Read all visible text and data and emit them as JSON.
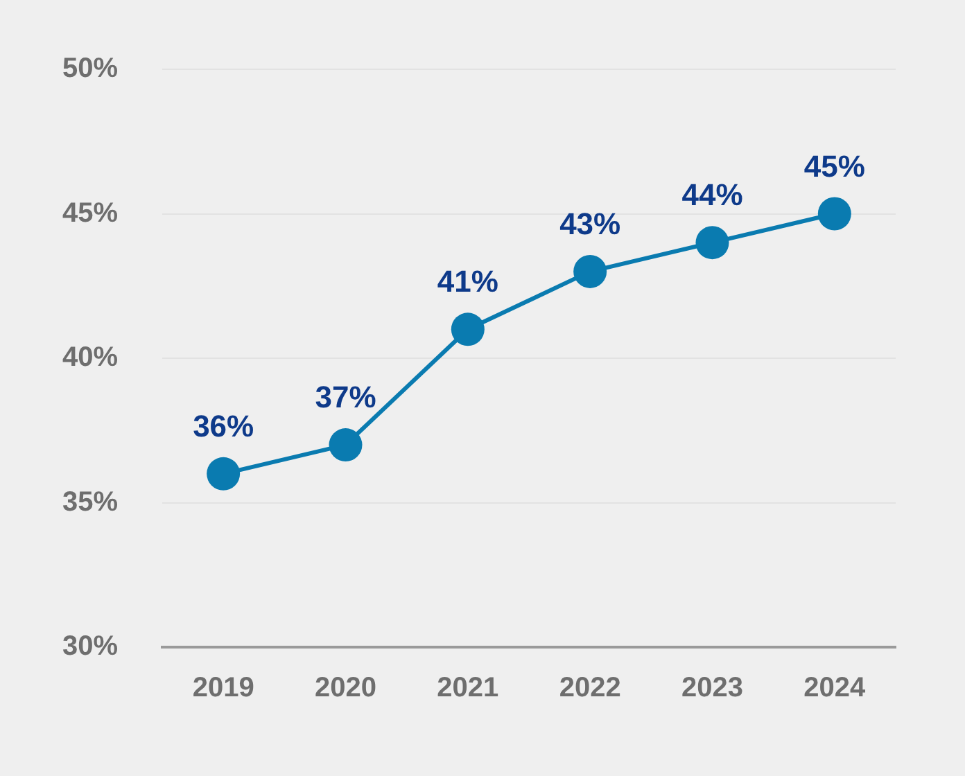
{
  "chart_data": {
    "type": "line",
    "categories": [
      "2019",
      "2020",
      "2021",
      "2022",
      "2023",
      "2024"
    ],
    "series": [
      {
        "color": "#0a7bb0",
        "values": [
          36,
          37,
          41,
          43,
          44,
          45
        ],
        "value_labels": [
          "36%",
          "37%",
          "41%",
          "43%",
          "44%",
          "45%"
        ]
      }
    ],
    "ylim": [
      30,
      50
    ],
    "yticks": [
      {
        "value": 30,
        "label": "30%"
      },
      {
        "value": 35,
        "label": "35%"
      },
      {
        "value": 40,
        "label": "40%"
      },
      {
        "value": 45,
        "label": "45%"
      },
      {
        "value": 50,
        "label": "50%"
      }
    ],
    "grid": "y",
    "legend": false,
    "marker": "circle",
    "line_style": "solid"
  }
}
